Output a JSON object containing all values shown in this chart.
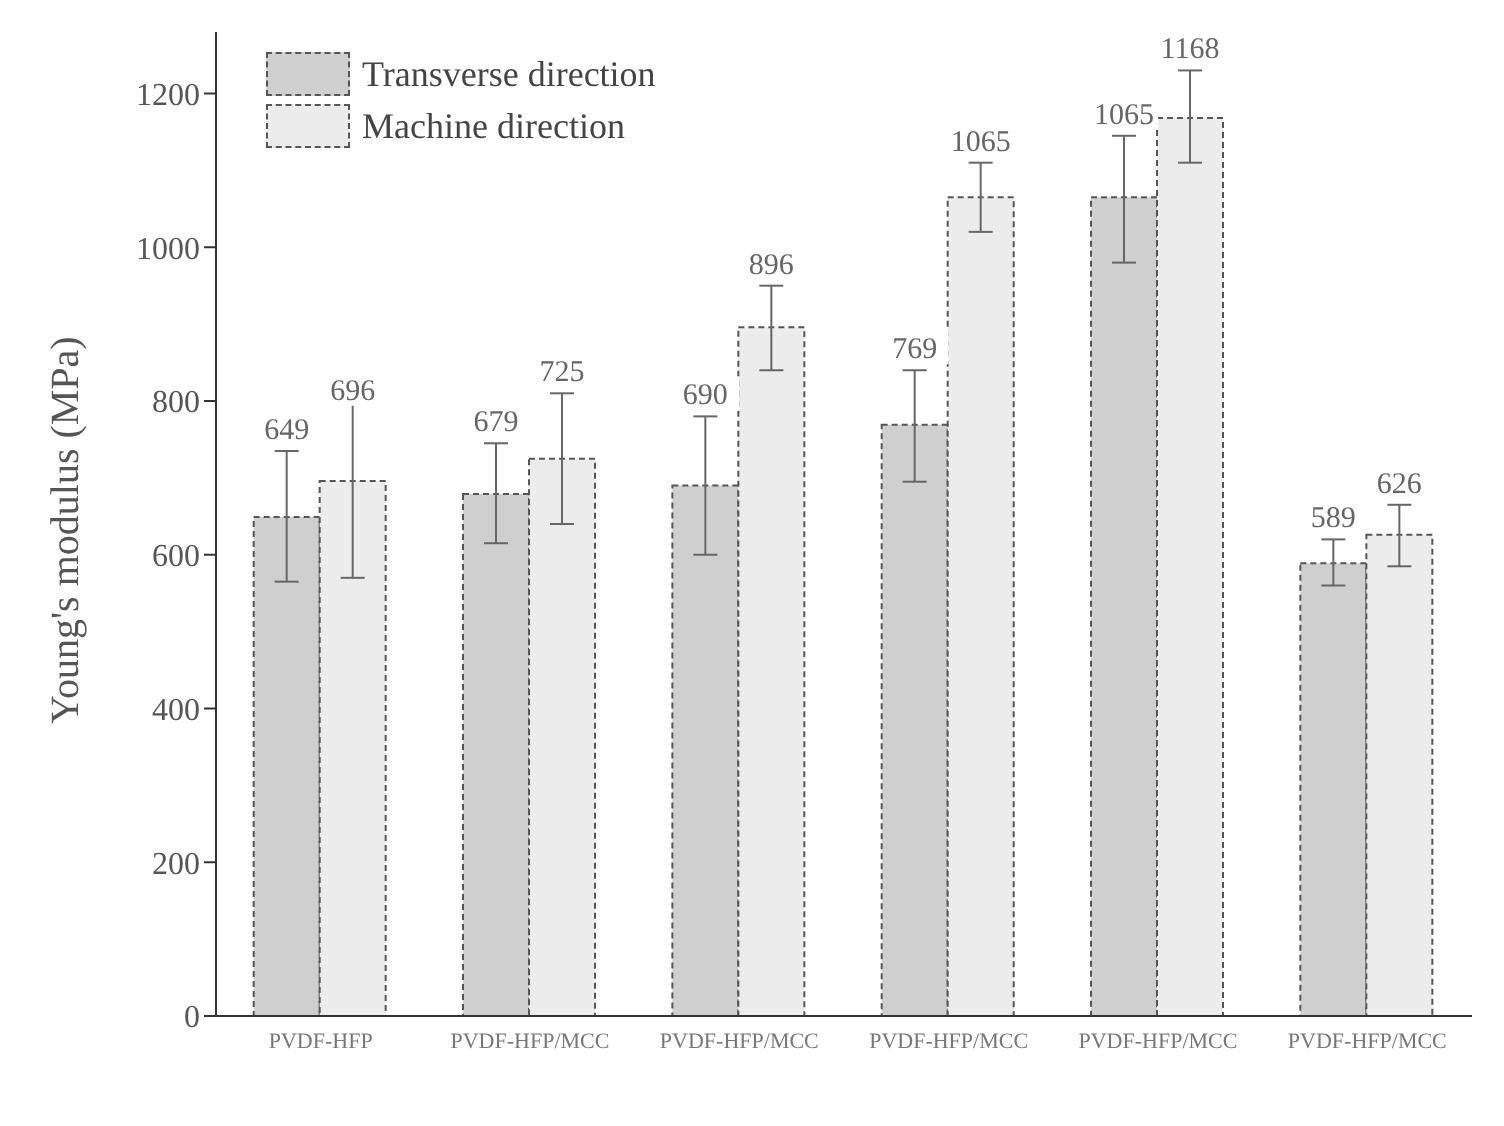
{
  "chart_data": {
    "type": "bar",
    "ylabel": "Young's modulus (MPa)",
    "categories": [
      "PVDF-HFP",
      "PVDF-HFP/MCC",
      "PVDF-HFP/MCC",
      "PVDF-HFP/MCC",
      "PVDF-HFP/MCC",
      "PVDF-HFP/MCC"
    ],
    "series": [
      {
        "name": "Transverse direction",
        "color": "#cfcfcf",
        "values": [
          649,
          679,
          690,
          769,
          1065,
          589
        ],
        "errors": [
          [
            565,
            735
          ],
          [
            615,
            745
          ],
          [
            600,
            780
          ],
          [
            695,
            840
          ],
          [
            980,
            1145
          ],
          [
            560,
            620
          ]
        ]
      },
      {
        "name": "Machine direction",
        "color": "#ececec",
        "values": [
          696,
          725,
          896,
          1065,
          1168,
          626
        ],
        "errors": [
          [
            570,
            825
          ],
          [
            640,
            810
          ],
          [
            840,
            950
          ],
          [
            1020,
            1110
          ],
          [
            1110,
            1230
          ],
          [
            585,
            665
          ]
        ]
      }
    ],
    "ylim": [
      0,
      1280
    ],
    "yticks": [
      0,
      200,
      400,
      600,
      800,
      1000,
      1200
    ],
    "grid": false,
    "legend": "top left",
    "data_labels": true
  }
}
